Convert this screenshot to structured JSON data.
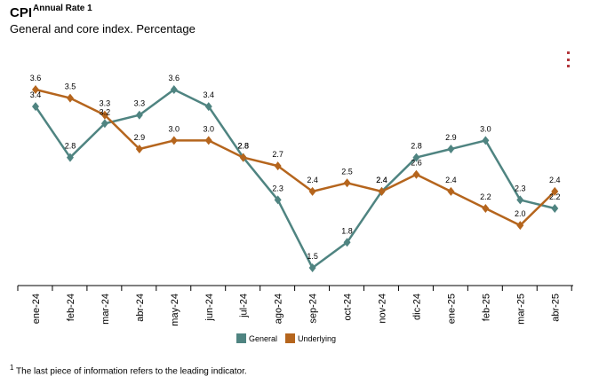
{
  "header": {
    "title": "CPI",
    "title_sup": "Annual Rate 1",
    "subtitle": "General and core index. Percentage"
  },
  "menu_icon": "kebab-menu-icon",
  "footnote": {
    "marker": "1",
    "text": " The last piece of information refers to the leading indicator."
  },
  "chart_data": {
    "type": "line",
    "categories": [
      "ene-24",
      "feb-24",
      "mar-24",
      "abr-24",
      "may-24",
      "jun-24",
      "jul-24",
      "ago-24",
      "sep-24",
      "oct-24",
      "nov-24",
      "dic-24",
      "ene-25",
      "feb-25",
      "mar-25",
      "abr-25"
    ],
    "series": [
      {
        "name": "General",
        "color": "#4f8481",
        "values": [
          3.4,
          2.8,
          3.2,
          3.3,
          3.6,
          3.4,
          2.8,
          2.3,
          1.5,
          1.8,
          2.4,
          2.8,
          2.9,
          3.0,
          2.3,
          2.2
        ]
      },
      {
        "name": "Underlying",
        "color": "#b5651d",
        "values": [
          3.6,
          3.5,
          3.3,
          2.9,
          3.0,
          3.0,
          2.8,
          2.7,
          2.4,
          2.5,
          2.4,
          2.6,
          2.4,
          2.2,
          2.0,
          2.4
        ]
      }
    ],
    "ylim": [
      1.5,
      3.6
    ],
    "grid": false,
    "legend_position": "bottom",
    "data_labels": true
  }
}
